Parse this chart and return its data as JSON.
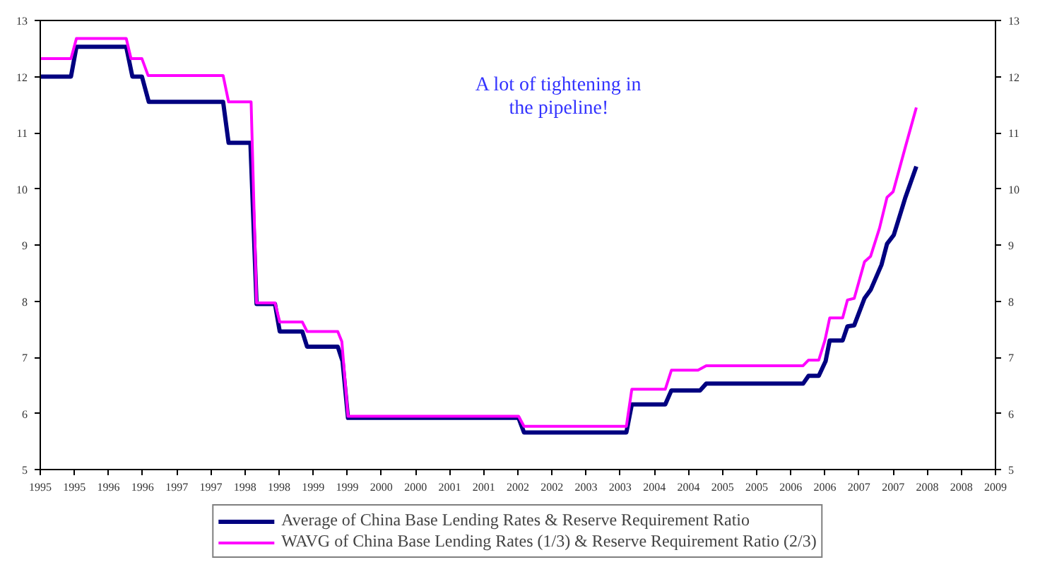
{
  "chart_data": {
    "type": "line",
    "annotations": [
      "A lot of tightening in\nthe pipeline!"
    ],
    "xlim": [
      1995,
      2009
    ],
    "xticks": [
      1995,
      {
        "value": 1995.5,
        "label": "1995"
      },
      1996,
      {
        "value": 1996.5,
        "label": "1996"
      },
      1997,
      {
        "value": 1997.5,
        "label": "1997"
      },
      1998,
      {
        "value": 1998.5,
        "label": "1998"
      },
      1999,
      {
        "value": 1999.5,
        "label": "1999"
      },
      2000,
      {
        "value": 2000.5,
        "label": "2000"
      },
      2001,
      {
        "value": 2001.5,
        "label": "2001"
      },
      2002,
      {
        "value": 2002.5,
        "label": "2002"
      },
      2003,
      {
        "value": 2003.5,
        "label": "2003"
      },
      2004,
      {
        "value": 2004.5,
        "label": "2004"
      },
      2005,
      {
        "value": 2005.5,
        "label": "2005"
      },
      2006,
      {
        "value": 2006.5,
        "label": "2006"
      },
      2007,
      {
        "value": 2007.5,
        "label": "2007"
      },
      2008,
      {
        "value": 2008.5,
        "label": "2008"
      },
      2009
    ],
    "ylim": [
      5,
      13
    ],
    "yticks": [
      5,
      6,
      7,
      8,
      9,
      10,
      11,
      12,
      13
    ],
    "y2lim": [
      5,
      13
    ],
    "y2ticks": [
      5,
      6,
      7,
      8,
      9,
      10,
      11,
      12,
      13
    ],
    "grid": false,
    "legend": "bottom",
    "marker": "none",
    "line_style": "solid",
    "series": [
      {
        "name": "Average of China Base Lending Rates & Reserve Requirement Ratio",
        "color": "#000080",
        "x": [
          1995.0,
          1995.45,
          1995.53,
          1996.26,
          1996.35,
          1996.49,
          1996.59,
          1997.68,
          1997.76,
          1998.08,
          1998.17,
          1998.44,
          1998.51,
          1998.84,
          1998.91,
          1999.36,
          1999.43,
          1999.51,
          2002.01,
          2002.09,
          2003.59,
          2003.67,
          2004.16,
          2004.25,
          2004.67,
          2004.76,
          2006.18,
          2006.26,
          2006.41,
          2006.51,
          2006.57,
          2006.76,
          2006.83,
          2006.93,
          2007.08,
          2007.17,
          2007.33,
          2007.41,
          2007.51,
          2007.68,
          2007.84
        ],
        "values": [
          12.0,
          12.0,
          12.53,
          12.53,
          12.0,
          12.0,
          11.55,
          11.55,
          10.82,
          10.82,
          7.95,
          7.95,
          7.46,
          7.46,
          7.19,
          7.19,
          6.93,
          5.92,
          5.92,
          5.66,
          5.66,
          6.16,
          6.16,
          6.41,
          6.41,
          6.53,
          6.53,
          6.67,
          6.67,
          6.93,
          7.3,
          7.3,
          7.55,
          7.57,
          8.05,
          8.2,
          8.65,
          9.02,
          9.18,
          9.85,
          10.4
        ]
      },
      {
        "name": "WAVG of China Base Lending Rates (1/3) & Reserve Requirement Ratio (2/3)",
        "color": "#ff00ff",
        "x": [
          1995.0,
          1995.45,
          1995.53,
          1996.26,
          1996.33,
          1996.49,
          1996.58,
          1997.68,
          1997.76,
          1998.09,
          1998.17,
          1998.44,
          1998.51,
          1998.84,
          1998.91,
          1999.36,
          1999.42,
          1999.51,
          2002.01,
          2002.09,
          2003.59,
          2003.67,
          2004.16,
          2004.25,
          2004.64,
          2004.76,
          2006.18,
          2006.26,
          2006.41,
          2006.5,
          2006.57,
          2006.76,
          2006.83,
          2006.93,
          2007.08,
          2007.17,
          2007.3,
          2007.41,
          2007.5,
          2007.68,
          2007.84
        ],
        "values": [
          12.32,
          12.32,
          12.68,
          12.68,
          12.32,
          12.32,
          12.02,
          12.02,
          11.55,
          11.55,
          7.97,
          7.97,
          7.63,
          7.63,
          7.46,
          7.46,
          7.28,
          5.95,
          5.95,
          5.77,
          5.77,
          6.43,
          6.43,
          6.77,
          6.77,
          6.85,
          6.85,
          6.95,
          6.95,
          7.3,
          7.7,
          7.7,
          8.02,
          8.05,
          8.7,
          8.8,
          9.3,
          9.85,
          9.95,
          10.75,
          11.45
        ]
      }
    ]
  }
}
